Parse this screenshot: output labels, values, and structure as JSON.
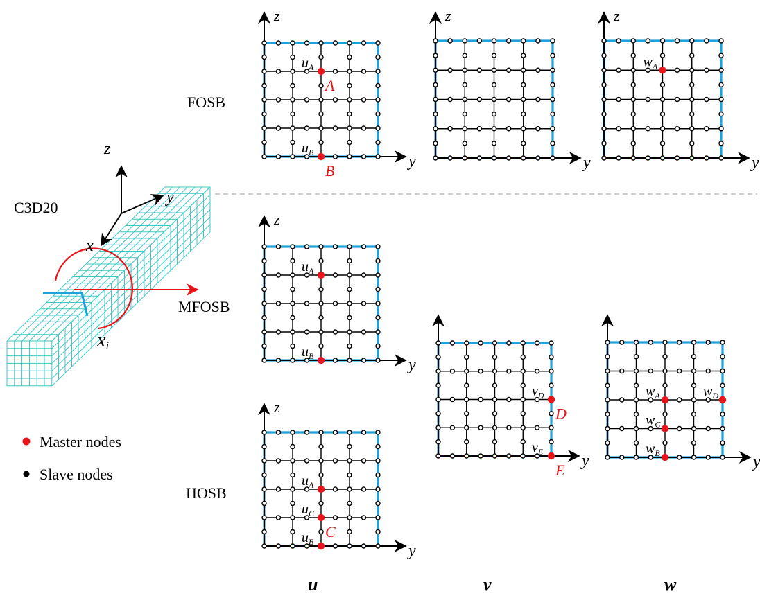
{
  "model": {
    "element_label": "C3D20",
    "axis_z": "z",
    "axis_y": "y",
    "axis_x": "x",
    "section_label": "x",
    "section_sub": "i"
  },
  "row_labels": {
    "fosb": "FOSB",
    "mfosb": "MFOSB",
    "hosb": "HOSB"
  },
  "column_labels": {
    "u": "u",
    "v": "v",
    "w": "w"
  },
  "legend": {
    "master": "Master nodes",
    "slave": "Slave nodes"
  },
  "colors": {
    "edge": "#1fa2dc",
    "grid": "#000000",
    "master": "#e8141a",
    "mesh": "#3cc8c8",
    "divider": "#bbbbbb"
  },
  "panels": [
    {
      "id": "fosb-u",
      "axis_z": "z",
      "axis_y": "y",
      "masters": [
        {
          "i": 2,
          "j": 3,
          "label": "A",
          "var": "u",
          "sub": "A"
        },
        {
          "i": 2,
          "j": 0,
          "label": "B",
          "var": "u",
          "sub": "B"
        }
      ]
    },
    {
      "id": "fosb-v",
      "axis_z": "z",
      "axis_y": "y",
      "masters": []
    },
    {
      "id": "fosb-w",
      "axis_z": "z",
      "axis_y": "y",
      "masters": [
        {
          "i": 2,
          "j": 3,
          "label": "",
          "var": "w",
          "sub": "A"
        }
      ]
    },
    {
      "id": "mfosb-u",
      "axis_z": "z",
      "axis_y": "y",
      "masters": [
        {
          "i": 2,
          "j": 3,
          "label": "",
          "var": "u",
          "sub": "A"
        },
        {
          "i": 2,
          "j": 0,
          "label": "",
          "var": "u",
          "sub": "B"
        }
      ]
    },
    {
      "id": "v-panel",
      "axis_z": "",
      "axis_y": "y",
      "masters": [
        {
          "i": 4,
          "j": 2,
          "label": "D",
          "var": "v",
          "sub": "D"
        },
        {
          "i": 4,
          "j": 0,
          "label": "E",
          "var": "v",
          "sub": "E"
        }
      ]
    },
    {
      "id": "w-panel",
      "axis_z": "",
      "axis_y": "y",
      "masters": [
        {
          "i": 2,
          "j": 2,
          "label": "",
          "var": "w",
          "sub": "A"
        },
        {
          "i": 4,
          "j": 2,
          "label": "",
          "var": "w",
          "sub": "D"
        },
        {
          "i": 2,
          "j": 1,
          "label": "",
          "var": "w",
          "sub": "C"
        },
        {
          "i": 2,
          "j": 0,
          "label": "",
          "var": "w",
          "sub": "B"
        }
      ]
    },
    {
      "id": "hosb-u",
      "axis_z": "z",
      "axis_y": "y",
      "masters": [
        {
          "i": 2,
          "j": 2,
          "label": "",
          "var": "u",
          "sub": "A"
        },
        {
          "i": 2,
          "j": 1,
          "label": "C",
          "var": "u",
          "sub": "C"
        },
        {
          "i": 2,
          "j": 0,
          "label": "",
          "var": "u",
          "sub": "B"
        }
      ]
    }
  ]
}
